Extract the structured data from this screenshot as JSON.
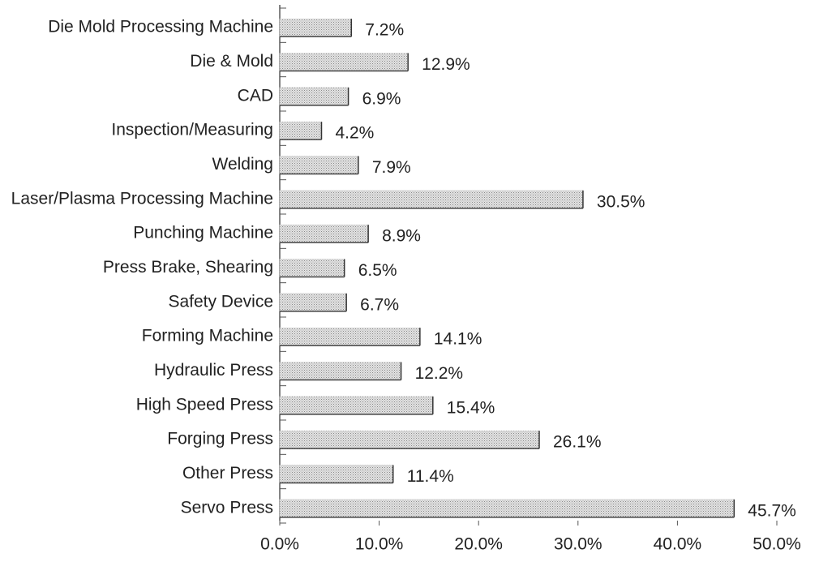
{
  "chart_data": {
    "type": "bar",
    "orientation": "horizontal",
    "categories": [
      "Die Mold Processing Machine",
      "Die & Mold",
      "CAD",
      "Inspection/Measuring",
      "Welding",
      "Laser/Plasma Processing Machine",
      "Punching Machine",
      "Press Brake, Shearing",
      "Safety Device",
      "Forming Machine",
      "Hydraulic Press",
      "High Speed Press",
      "Forging Press",
      "Other Press",
      "Servo Press"
    ],
    "values": [
      7.2,
      12.9,
      6.9,
      4.2,
      7.9,
      30.5,
      8.9,
      6.5,
      6.7,
      14.1,
      12.2,
      15.4,
      26.1,
      11.4,
      45.7
    ],
    "value_labels": [
      "7.2%",
      "12.9%",
      "6.9%",
      "4.2%",
      "7.9%",
      "30.5%",
      "8.9%",
      "6.5%",
      "6.7%",
      "14.1%",
      "12.2%",
      "15.4%",
      "26.1%",
      "11.4%",
      "45.7%"
    ],
    "color": "#cfcfcf",
    "xlim": [
      0,
      50
    ],
    "xticks": [
      {
        "value": 0,
        "label": "0.0%"
      },
      {
        "value": 10,
        "label": "10.0%"
      },
      {
        "value": 20,
        "label": "20.0%"
      },
      {
        "value": 30,
        "label": "30.0%"
      },
      {
        "value": 40,
        "label": "40.0%"
      },
      {
        "value": 50,
        "label": "50.0%"
      }
    ],
    "grid": false
  }
}
